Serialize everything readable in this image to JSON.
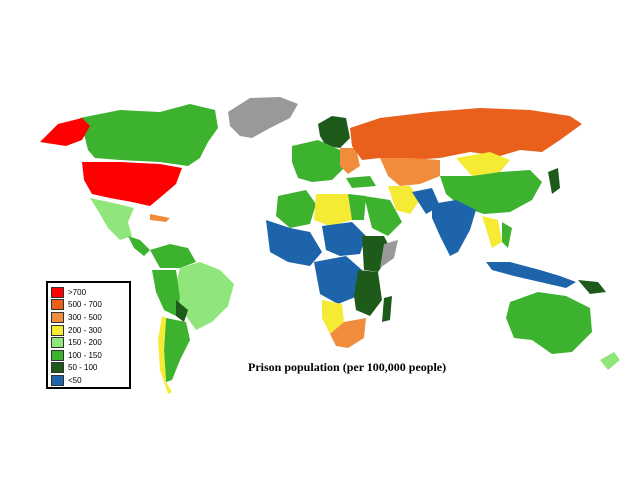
{
  "title": "Prison population (per 100,000 people)",
  "legend": [
    {
      "label": ">700",
      "color": "#ff0000"
    },
    {
      "label": "500 - 700",
      "color": "#e8601c"
    },
    {
      "label": "300 - 500",
      "color": "#f08c3c"
    },
    {
      "label": "200 - 300",
      "color": "#f5eb35"
    },
    {
      "label": "150 - 200",
      "color": "#90e67a"
    },
    {
      "label": "100 - 150",
      "color": "#3cb22e"
    },
    {
      "label": "50 - 100",
      "color": "#1e5a19"
    },
    {
      "label": "<50",
      "color": "#1e64aa"
    }
  ],
  "no_data_color": "#999999"
}
